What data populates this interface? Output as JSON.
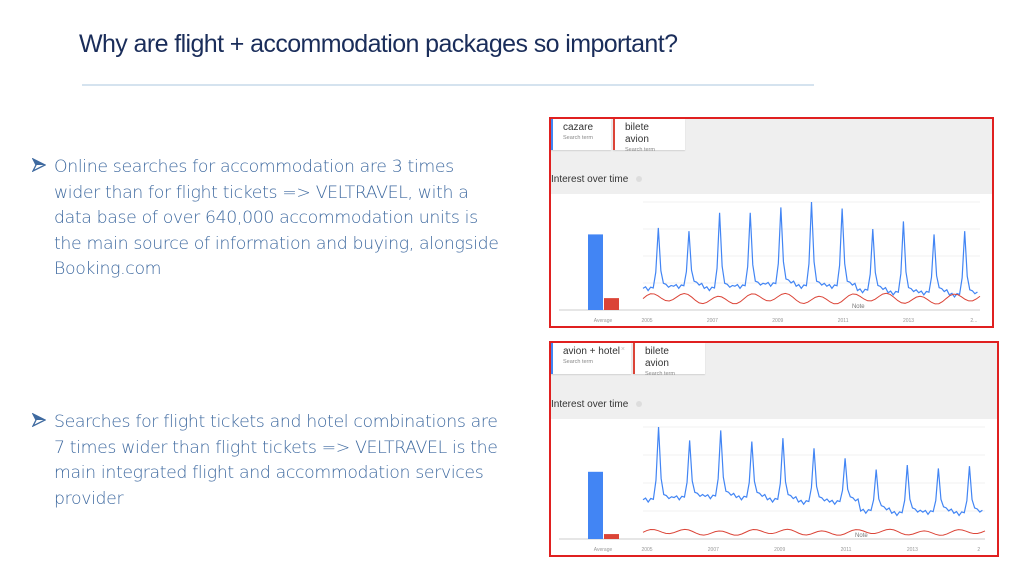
{
  "slide": {
    "title": "Why are flight + accommodation packages so important?",
    "bullets": [
      {
        "icon": "arrow-bullet-icon",
        "text": "Online searches for accommodation are 3 times wider than for  flight tickets => VELTRAVEL, with a data base of over 640,000 accommodation units is the main source of information and buying, alongside Booking.com"
      },
      {
        "icon": "arrow-bullet-icon",
        "text": "Searches for flight tickets and hotel combinations are 7 times wider than flight tickets => VELTRAVEL is the main integrated flight and accommodation services provider"
      }
    ]
  },
  "colors": {
    "title": "#1a2d5a",
    "bullet_text": "#3f6aa0",
    "frame_border": "#e02020",
    "series_blue": "#4285f4",
    "series_red": "#db4437"
  },
  "charts": [
    {
      "terms": [
        {
          "term": "cazare",
          "sub": "Search term",
          "color": "blue"
        },
        {
          "term": "bilete avion",
          "sub": "Search term",
          "color": "red"
        }
      ],
      "heading": "Interest over time",
      "avg_label": "Average",
      "note_label": "Note",
      "x_ticks": [
        "2005",
        "2007",
        "2009",
        "2011",
        "2013",
        "2..."
      ]
    },
    {
      "terms": [
        {
          "term": "avion + hotel",
          "sub": "Search term",
          "color": "blue",
          "close": "×"
        },
        {
          "term": "bilete avion",
          "sub": "Search term",
          "color": "red"
        }
      ],
      "heading": "Interest over time",
      "avg_label": "Average",
      "note_label": "Note",
      "x_ticks": [
        "2005",
        "2007",
        "2009",
        "2011",
        "2013",
        "2"
      ]
    }
  ],
  "chart_data": [
    {
      "type": "line",
      "title": "Interest over time",
      "series": [
        {
          "name": "cazare",
          "color": "#4285f4",
          "average": 70,
          "peaks": [
            76,
            73,
            90,
            90,
            95,
            100,
            94,
            75,
            82,
            70,
            73
          ],
          "troughs": [
            20,
            22,
            20,
            22,
            24,
            22,
            22,
            18,
            16,
            16,
            14
          ]
        },
        {
          "name": "bilete avion",
          "color": "#db4437",
          "average": 20,
          "values_range": [
            5,
            16
          ]
        }
      ],
      "x_ticks": [
        "2005",
        "2007",
        "2009",
        "2011",
        "2013",
        "2..."
      ],
      "ylim": [
        0,
        100
      ],
      "annotations": [
        "Note"
      ],
      "bar_averages": {
        "cazare": 70,
        "bilete avion": 20
      }
    },
    {
      "type": "line",
      "title": "Interest over time",
      "series": [
        {
          "name": "avion + hotel",
          "color": "#4285f4",
          "average": 60,
          "peaks": [
            100,
            88,
            97,
            87,
            90,
            81,
            72,
            62,
            66,
            63,
            65
          ],
          "troughs": [
            35,
            37,
            38,
            37,
            35,
            33,
            33,
            25,
            23,
            24,
            23
          ]
        },
        {
          "name": "bilete avion",
          "color": "#db4437",
          "average": 8,
          "values_range": [
            3,
            9
          ]
        }
      ],
      "x_ticks": [
        "2005",
        "2007",
        "2009",
        "2011",
        "2013",
        "2"
      ],
      "ylim": [
        0,
        100
      ],
      "annotations": [
        "Note"
      ],
      "bar_averages": {
        "avion + hotel": 60,
        "bilete avion": 8
      }
    }
  ]
}
